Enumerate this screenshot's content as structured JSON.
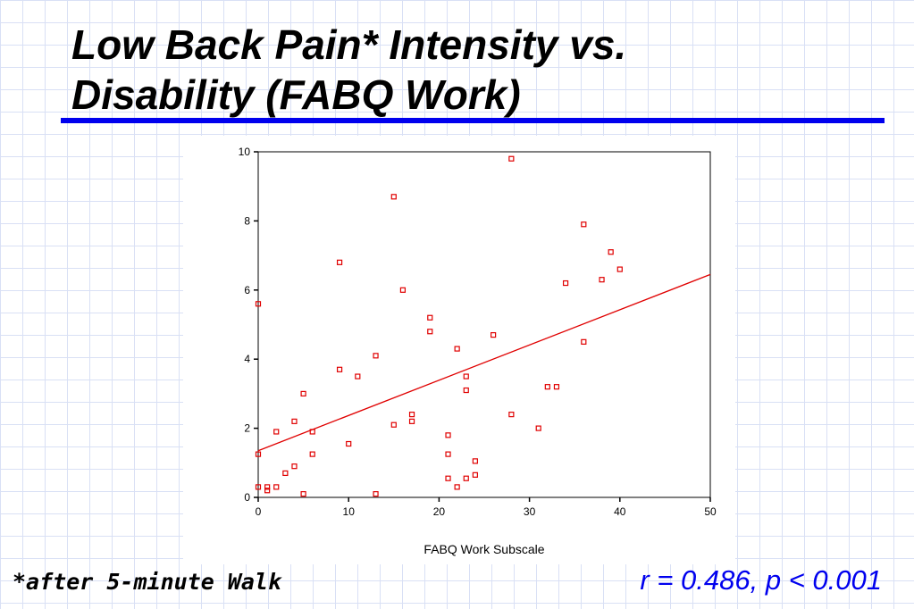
{
  "slide": {
    "title_line1": "Low Back Pain* Intensity vs.",
    "title_line2": "Disability (FABQ Work)",
    "footnote": "*after 5-minute Walk",
    "stat": "r = 0.486, p < 0.001"
  },
  "colors": {
    "accent": "#0000ee",
    "marker": "#e00000",
    "fit_line": "#e00000"
  },
  "chart_data": {
    "type": "scatter",
    "title": "",
    "xlabel": "FABQ Work Subscale",
    "ylabel": "",
    "xlim": [
      0,
      50
    ],
    "ylim": [
      0,
      10
    ],
    "xticks": [
      0,
      10,
      20,
      30,
      40,
      50
    ],
    "yticks": [
      0,
      2,
      4,
      6,
      8,
      10
    ],
    "grid": false,
    "legend": "none",
    "marker": "open-square",
    "regression_line": {
      "intercept": 1.35,
      "slope": 0.102
    },
    "points": [
      [
        0,
        5.6
      ],
      [
        0,
        1.25
      ],
      [
        0,
        0.3
      ],
      [
        1,
        0.3
      ],
      [
        1,
        0.2
      ],
      [
        2,
        0.3
      ],
      [
        2,
        1.9
      ],
      [
        3,
        0.7
      ],
      [
        4,
        0.9
      ],
      [
        4,
        2.2
      ],
      [
        5,
        3.0
      ],
      [
        5,
        0.1
      ],
      [
        6,
        1.9
      ],
      [
        6,
        1.25
      ],
      [
        9,
        6.8
      ],
      [
        9,
        3.7
      ],
      [
        10,
        1.55
      ],
      [
        11,
        3.5
      ],
      [
        13,
        4.1
      ],
      [
        13,
        0.1
      ],
      [
        15,
        8.7
      ],
      [
        15,
        2.1
      ],
      [
        16,
        6.0
      ],
      [
        17,
        2.4
      ],
      [
        17,
        2.2
      ],
      [
        19,
        5.2
      ],
      [
        19,
        4.8
      ],
      [
        21,
        1.8
      ],
      [
        21,
        1.25
      ],
      [
        21,
        0.55
      ],
      [
        22,
        4.3
      ],
      [
        22,
        0.3
      ],
      [
        23,
        3.5
      ],
      [
        23,
        3.1
      ],
      [
        23,
        0.55
      ],
      [
        24,
        1.05
      ],
      [
        24,
        0.65
      ],
      [
        26,
        4.7
      ],
      [
        28,
        9.8
      ],
      [
        28,
        2.4
      ],
      [
        31,
        2.0
      ],
      [
        32,
        3.2
      ],
      [
        33,
        3.2
      ],
      [
        34,
        6.2
      ],
      [
        36,
        7.9
      ],
      [
        36,
        4.5
      ],
      [
        38,
        6.3
      ],
      [
        39,
        7.1
      ],
      [
        40,
        6.6
      ]
    ]
  }
}
